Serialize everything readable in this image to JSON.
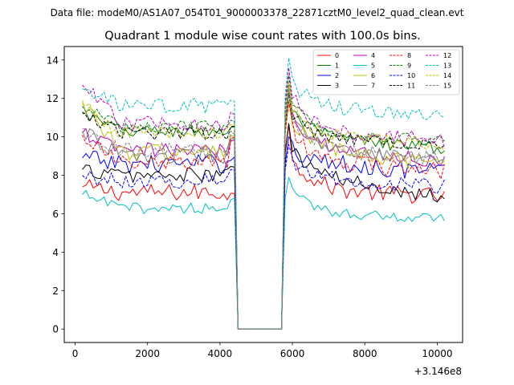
{
  "suptitle": "Data file: modeM0/AS1A07_054T01_9000003378_22871cztM0_level2_quad_clean.evt",
  "chart_data": {
    "type": "line",
    "title": "Quadrant 1 module wise count rates with 100.0s bins.",
    "xlabel": "",
    "ylabel": "",
    "x_offset_label": "+3.146e8",
    "xlim": [
      -300,
      10700
    ],
    "ylim": [
      -0.7,
      14.7
    ],
    "x_ticks": [
      0,
      2000,
      4000,
      6000,
      8000,
      10000
    ],
    "x_tick_labels": [
      "0",
      "2000",
      "4000",
      "6000",
      "8000",
      "10000"
    ],
    "y_ticks": [
      0,
      2,
      4,
      6,
      8,
      10,
      12,
      14
    ],
    "y_tick_labels": [
      "0",
      "2",
      "4",
      "6",
      "8",
      "10",
      "12",
      "14"
    ],
    "bin_width_s": 100,
    "x_start": 200,
    "x_end": 10200,
    "gap": {
      "start": 4500,
      "end": 5700,
      "value": 0
    },
    "legend_position": "top-right",
    "series": [
      {
        "name": "0",
        "color": "#ff0000",
        "style": "solid",
        "pre_level": 7.1,
        "pre_first": 7.4,
        "pre_last": 7.0,
        "post_peak": 10.6,
        "post_level": 7.3,
        "post_end": 6.9,
        "jitter": 0.45
      },
      {
        "name": "1",
        "color": "#008000",
        "style": "solid",
        "pre_level": 10.3,
        "pre_first": 11.2,
        "pre_last": 10.5,
        "post_peak": 12.4,
        "post_level": 10.1,
        "post_end": 9.4,
        "jitter": 0.35
      },
      {
        "name": "2",
        "color": "#0000ff",
        "style": "solid",
        "pre_level": 8.6,
        "pre_first": 8.9,
        "pre_last": 8.9,
        "post_peak": 10.0,
        "post_level": 8.7,
        "post_end": 8.2,
        "jitter": 0.5
      },
      {
        "name": "3",
        "color": "#000000",
        "style": "solid",
        "pre_level": 8.0,
        "pre_first": 8.3,
        "pre_last": 8.4,
        "post_peak": 10.7,
        "post_level": 8.1,
        "post_end": 6.9,
        "jitter": 0.4
      },
      {
        "name": "4",
        "color": "#bf00bf",
        "style": "solid",
        "pre_level": 9.3,
        "pre_first": 10.2,
        "pre_last": 9.8,
        "post_peak": 12.7,
        "post_level": 9.6,
        "post_end": 8.7,
        "jitter": 0.4
      },
      {
        "name": "5",
        "color": "#00bfbf",
        "style": "solid",
        "pre_level": 6.3,
        "pre_first": 7.0,
        "pre_last": 6.8,
        "post_peak": 7.9,
        "post_level": 6.2,
        "post_end": 5.7,
        "jitter": 0.3
      },
      {
        "name": "6",
        "color": "#bfbf00",
        "style": "solid",
        "pre_level": 9.2,
        "pre_first": 11.9,
        "pre_last": 10.0,
        "post_peak": 11.9,
        "post_level": 9.6,
        "post_end": 8.4,
        "jitter": 0.45
      },
      {
        "name": "7",
        "color": "#808080",
        "style": "solid",
        "pre_level": 9.0,
        "pre_first": 10.3,
        "pre_last": 9.9,
        "post_peak": 12.6,
        "post_level": 9.2,
        "post_end": 8.9,
        "jitter": 0.4
      },
      {
        "name": "8",
        "color": "#ff0000",
        "style": "dashed",
        "pre_level": 8.6,
        "pre_first": 10.1,
        "pre_last": 10.0,
        "post_peak": 11.8,
        "post_level": 8.8,
        "post_end": 8.2,
        "jitter": 0.45
      },
      {
        "name": "9",
        "color": "#008000",
        "style": "dashed",
        "pre_level": 10.5,
        "pre_first": 11.6,
        "pre_last": 10.8,
        "post_peak": 13.2,
        "post_level": 10.2,
        "post_end": 9.8,
        "jitter": 0.35
      },
      {
        "name": "10",
        "color": "#0000ff",
        "style": "dashed",
        "pre_level": 7.7,
        "pre_first": 8.0,
        "pre_last": 8.3,
        "post_peak": 9.6,
        "post_level": 7.9,
        "post_end": 7.4,
        "jitter": 0.4
      },
      {
        "name": "11",
        "color": "#000000",
        "style": "dashed",
        "pre_level": 10.2,
        "pre_first": 11.3,
        "pre_last": 10.6,
        "post_peak": 12.3,
        "post_level": 10.0,
        "post_end": 9.6,
        "jitter": 0.35
      },
      {
        "name": "12",
        "color": "#bf00bf",
        "style": "dashed",
        "pre_level": 10.7,
        "pre_first": 12.7,
        "pre_last": 11.2,
        "post_peak": 13.6,
        "post_level": 10.4,
        "post_end": 9.8,
        "jitter": 0.4
      },
      {
        "name": "13",
        "color": "#00bfbf",
        "style": "dashed",
        "pre_level": 11.6,
        "pre_first": 12.5,
        "pre_last": 11.9,
        "post_peak": 14.1,
        "post_level": 11.6,
        "post_end": 11.0,
        "jitter": 0.4
      },
      {
        "name": "14",
        "color": "#bfbf00",
        "style": "dashed",
        "pre_level": 10.2,
        "pre_first": 11.7,
        "pre_last": 10.7,
        "post_peak": 12.8,
        "post_level": 10.1,
        "post_end": 9.6,
        "jitter": 0.35
      },
      {
        "name": "15",
        "color": "#808080",
        "style": "dashed",
        "pre_level": 9.3,
        "pre_first": 10.4,
        "pre_last": 10.2,
        "post_peak": 12.4,
        "post_level": 9.4,
        "post_end": 8.9,
        "jitter": 0.4
      }
    ]
  }
}
